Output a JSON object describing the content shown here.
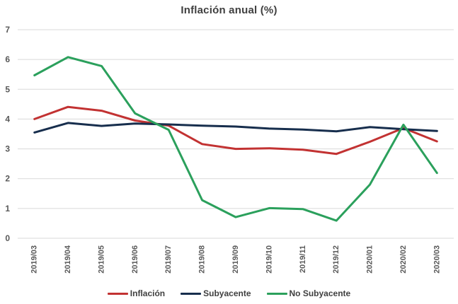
{
  "chart_data": {
    "type": "line",
    "title": "Inflación anual (%)",
    "xlabel": "",
    "ylabel": "",
    "ylim": [
      0,
      7
    ],
    "yticks": [
      0,
      1,
      2,
      3,
      4,
      5,
      6,
      7
    ],
    "grid": "horizontal",
    "legend_position": "bottom",
    "categories": [
      "2019/03",
      "2019/04",
      "2019/05",
      "2019/06",
      "2019/07",
      "2019/08",
      "2019/09",
      "2019/10",
      "2019/11",
      "2019/12",
      "2020/01",
      "2020/02",
      "2020/03"
    ],
    "series": [
      {
        "name": "Inflación",
        "color": "#c23232",
        "values": [
          4.0,
          4.41,
          4.28,
          3.95,
          3.78,
          3.16,
          3.0,
          3.02,
          2.97,
          2.83,
          3.24,
          3.7,
          3.25
        ]
      },
      {
        "name": "Subyacente",
        "color": "#172e4d",
        "values": [
          3.55,
          3.87,
          3.77,
          3.85,
          3.82,
          3.78,
          3.75,
          3.68,
          3.65,
          3.59,
          3.73,
          3.66,
          3.6
        ]
      },
      {
        "name": "No Subyacente",
        "color": "#2ba05c",
        "values": [
          5.47,
          6.08,
          5.78,
          4.19,
          3.64,
          1.28,
          0.71,
          1.01,
          0.98,
          0.59,
          1.8,
          3.81,
          2.19
        ]
      }
    ]
  },
  "colors": {
    "grid": "#d9d9d9",
    "tick_label": "#595959",
    "title": "#3f3f3f",
    "legend_label": "#404040",
    "background": "#ffffff"
  }
}
